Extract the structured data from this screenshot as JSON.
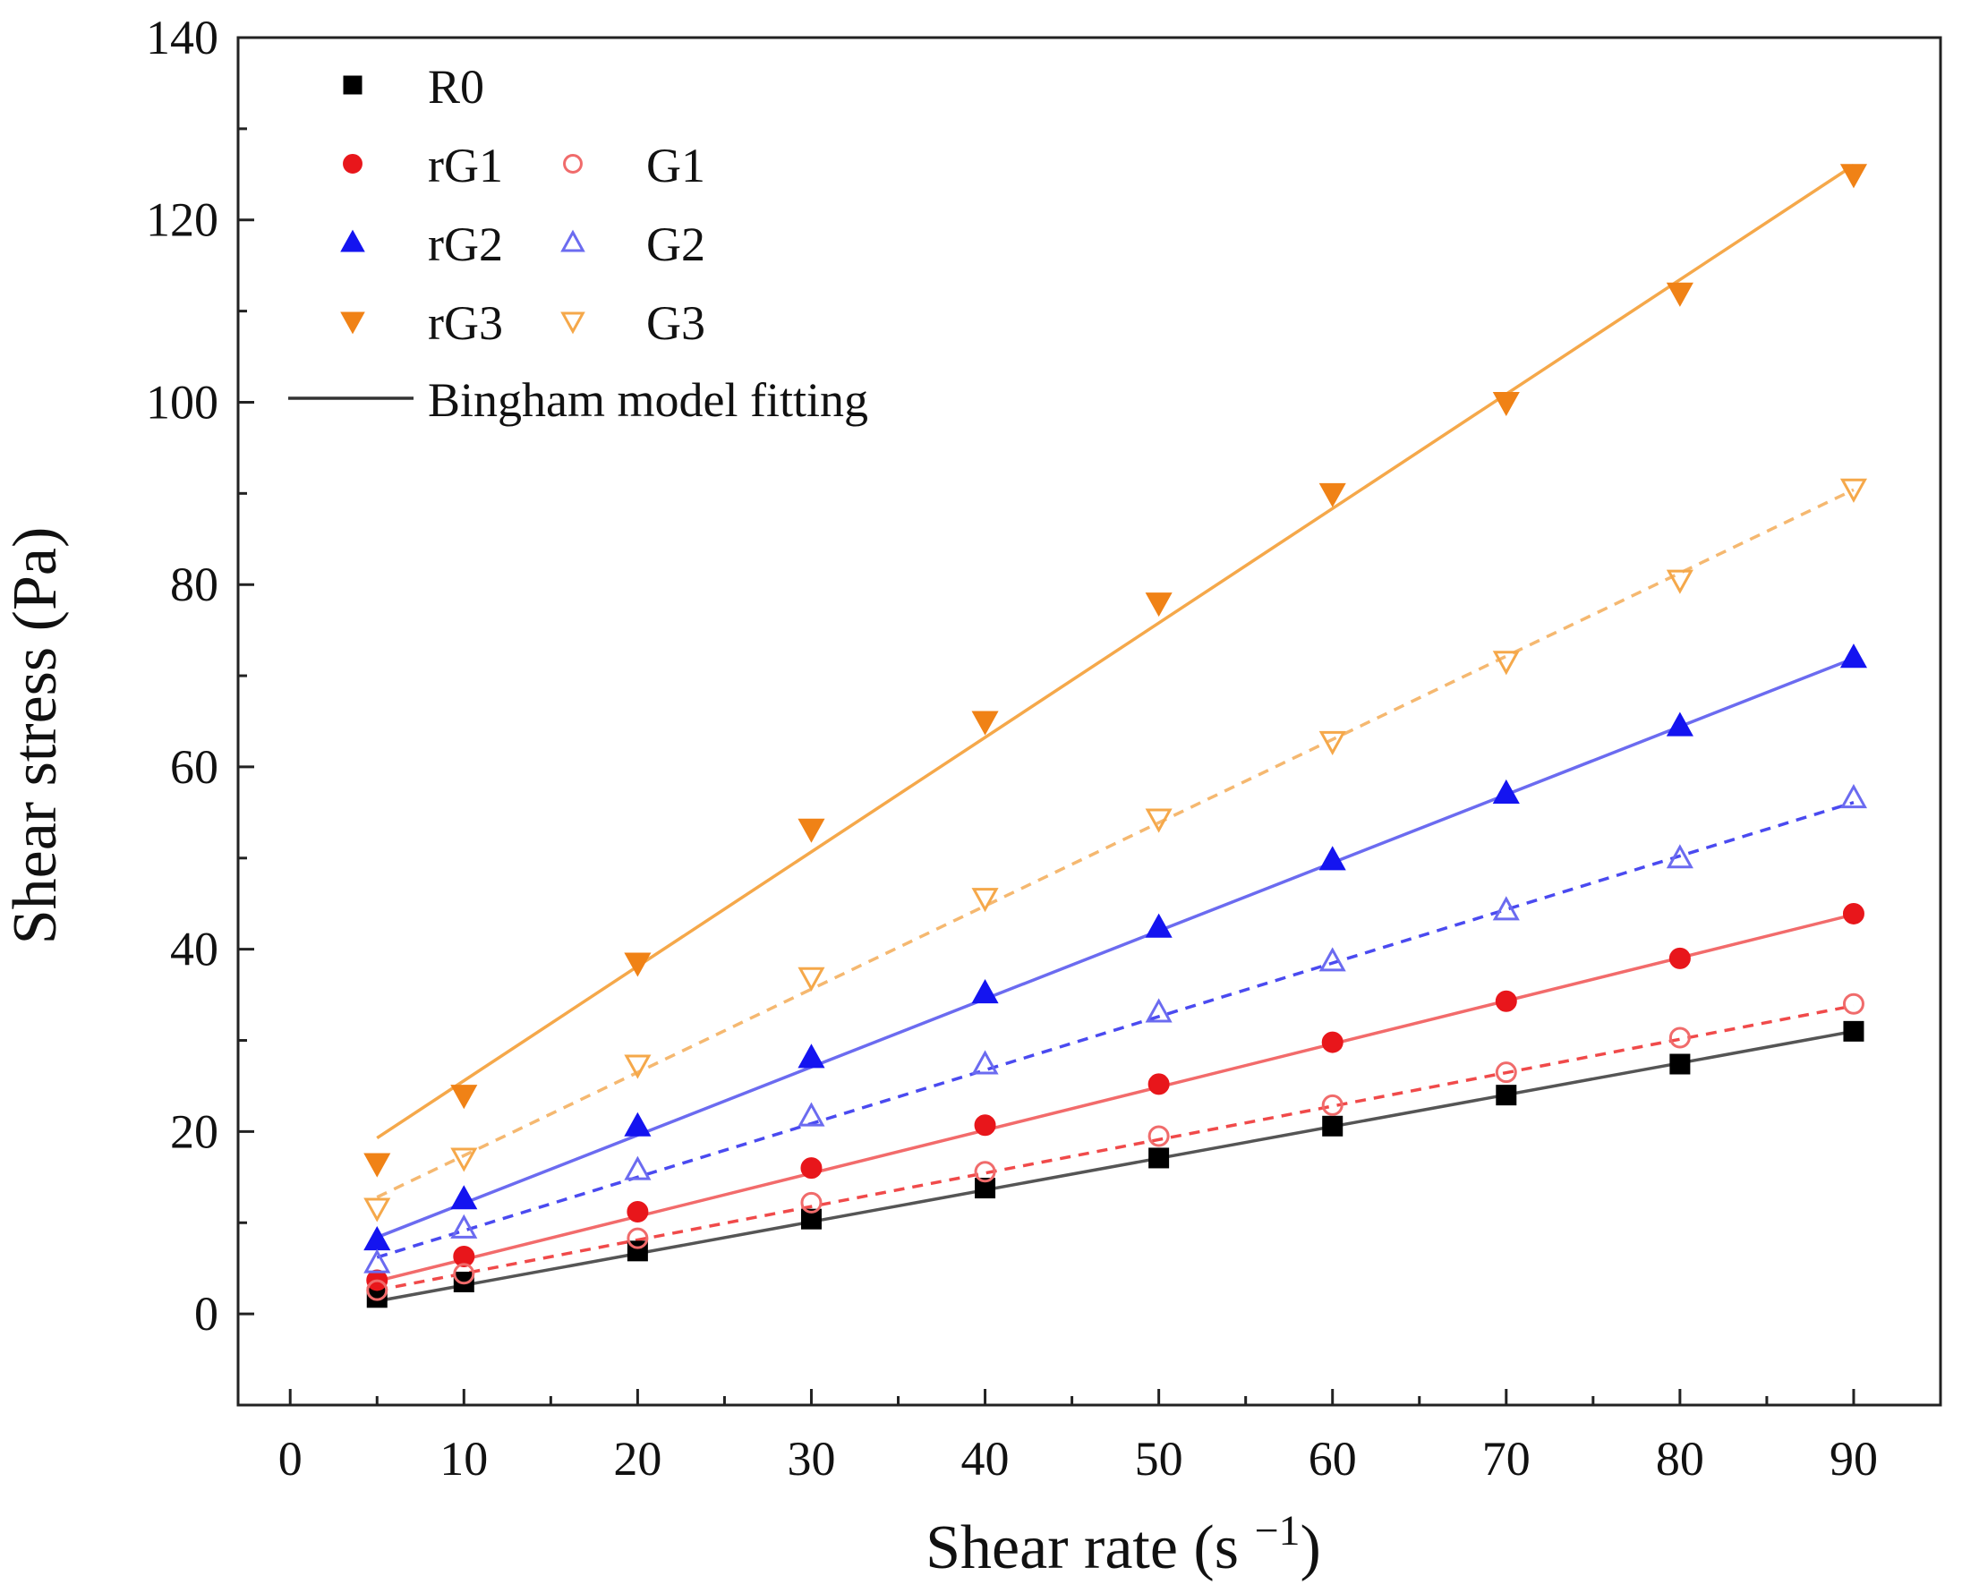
{
  "chart_data": {
    "type": "scatter",
    "xlabel": "Shear rate (s −1)",
    "ylabel": "Shear stress (Pa)",
    "xlim": [
      -3,
      95
    ],
    "ylim": [
      -10,
      140
    ],
    "xticks": [
      0,
      10,
      20,
      30,
      40,
      50,
      60,
      70,
      80,
      90
    ],
    "yticks": [
      0,
      20,
      40,
      60,
      80,
      100,
      120,
      140
    ],
    "xtick_labels": [
      "0",
      "10",
      "20",
      "30",
      "40",
      "50",
      "60",
      "70",
      "80",
      "90"
    ],
    "ytick_labels": [
      "0",
      "20",
      "40",
      "60",
      "80",
      "100",
      "120",
      "140"
    ],
    "x": [
      5,
      10,
      20,
      30,
      40,
      50,
      60,
      70,
      80,
      90
    ],
    "legend_position": "top-left",
    "series": [
      {
        "id": "R0",
        "name": "R0",
        "marker": "square",
        "filled": true,
        "color": "#000000",
        "fit_color": "#555555",
        "fit_style": "solid",
        "values": [
          1.8,
          3.5,
          6.9,
          10.4,
          13.8,
          17.1,
          20.6,
          24.0,
          27.4,
          31.0
        ],
        "fit": [
          1.4,
          31.0
        ]
      },
      {
        "id": "rG1",
        "name": "rG1",
        "marker": "circle",
        "filled": true,
        "color": "#e8161b",
        "fit_color": "#f26b6b",
        "fit_style": "solid",
        "values": [
          3.7,
          6.3,
          11.2,
          16.0,
          20.7,
          25.2,
          29.8,
          34.3,
          39.0,
          43.9
        ],
        "fit": [
          3.6,
          43.8
        ]
      },
      {
        "id": "G1",
        "name": "G1",
        "marker": "circle",
        "filled": false,
        "color": "#f06b6b",
        "fit_color": "#f04a4a",
        "fit_style": "dashed",
        "values": [
          2.6,
          4.4,
          8.3,
          12.2,
          15.6,
          19.5,
          22.9,
          26.5,
          30.3,
          34.0
        ],
        "fit": [
          2.6,
          33.8
        ]
      },
      {
        "id": "rG2",
        "name": "rG2",
        "marker": "triangle-up",
        "filled": true,
        "color": "#1414f0",
        "fit_color": "#6b6bf0",
        "fit_style": "solid",
        "values": [
          8.1,
          12.6,
          20.6,
          28.1,
          35.2,
          42.4,
          49.8,
          57.1,
          64.5,
          72.0
        ],
        "fit": [
          8.4,
          71.9
        ]
      },
      {
        "id": "G2",
        "name": "G2",
        "marker": "triangle-up",
        "filled": false,
        "color": "#6b6bf0",
        "fit_color": "#4a4af0",
        "fit_style": "dashed",
        "values": [
          5.6,
          9.4,
          15.8,
          21.7,
          27.4,
          33.1,
          38.7,
          44.3,
          50.0,
          56.6
        ],
        "fit": [
          6.2,
          56.1
        ]
      },
      {
        "id": "rG3",
        "name": "rG3",
        "marker": "triangle-down",
        "filled": true,
        "color": "#f08216",
        "fit_color": "#f5a84a",
        "fit_style": "solid",
        "values": [
          16.5,
          24.0,
          38.5,
          53.2,
          65.0,
          78.0,
          90.0,
          100.0,
          112.0,
          125.0
        ],
        "fit": [
          19.3,
          126.0
        ]
      },
      {
        "id": "G3",
        "name": "G3",
        "marker": "triangle-down",
        "filled": false,
        "color": "#f5a84a",
        "fit_color": "#f5b870",
        "fit_style": "dashed",
        "values": [
          11.6,
          17.1,
          27.3,
          36.9,
          45.6,
          54.3,
          62.8,
          71.6,
          80.5,
          90.5
        ],
        "fit": [
          12.8,
          90.4
        ]
      }
    ],
    "legend": {
      "fit_label": "Bingham model fitting",
      "fit_color": "#333333",
      "rows": [
        [
          "R0"
        ],
        [
          "rG1",
          "G1"
        ],
        [
          "rG2",
          "G2"
        ],
        [
          "rG3",
          "G3"
        ]
      ]
    }
  }
}
